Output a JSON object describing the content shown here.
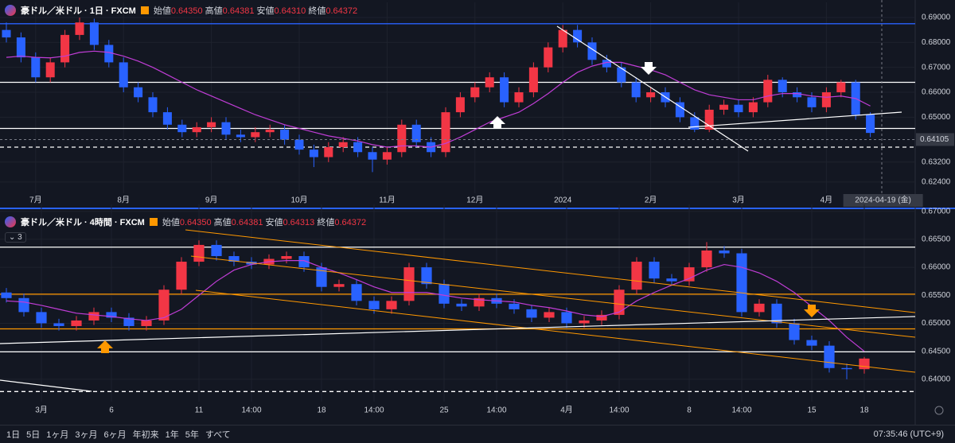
{
  "chart_data": [
    {
      "type": "candlestick",
      "title": "豪ドル／米ドル · 1日 · FXCM",
      "ohlc_legend": [
        {
          "name": "始値",
          "value": "0.64350"
        },
        {
          "name": "高値",
          "value": "0.64381"
        },
        {
          "name": "安値",
          "value": "0.64310"
        },
        {
          "name": "終値",
          "value": "0.64372"
        }
      ],
      "up_color": "#f23645",
      "down_color": "#2962ff",
      "ma_color": "#c03dd6",
      "grid": true,
      "ylim": [
        0.6195,
        0.6935
      ],
      "yticks": [
        {
          "value": 0.69,
          "label": "0.69000"
        },
        {
          "value": 0.68,
          "label": "0.68000"
        },
        {
          "value": 0.67,
          "label": "0.67000"
        },
        {
          "value": 0.66,
          "label": "0.66000"
        },
        {
          "value": 0.65,
          "label": "0.65000"
        },
        {
          "value": 0.632,
          "label": "0.63200"
        },
        {
          "value": 0.624,
          "label": "0.62400"
        }
      ],
      "crosshair": {
        "date": "2024-04-19 (金)",
        "price": {
          "value": 0.64105,
          "label": "0.64105"
        }
      },
      "levels": [
        {
          "value": 0.6875,
          "color": "#2962ff",
          "style": "solid"
        },
        {
          "value": 0.664,
          "color": "#ffffff",
          "style": "solid"
        },
        {
          "value": 0.6455,
          "color": "#ffffff",
          "style": "solid"
        },
        {
          "value": 0.638,
          "color": "#ffffff",
          "style": "dashed"
        }
      ],
      "categories": [
        null,
        null,
        "7月",
        null,
        null,
        null,
        null,
        null,
        "8月",
        null,
        null,
        null,
        null,
        null,
        "9月",
        null,
        null,
        null,
        null,
        null,
        "10月",
        null,
        null,
        null,
        null,
        null,
        "11月",
        null,
        null,
        null,
        null,
        null,
        "12月",
        null,
        null,
        null,
        null,
        null,
        "2024",
        null,
        null,
        null,
        null,
        null,
        "2月",
        null,
        null,
        null,
        null,
        null,
        "3月",
        null,
        null,
        null,
        null,
        null,
        "4月",
        null,
        null,
        null
      ],
      "ohlc": [
        [
          0.685,
          0.688,
          0.68,
          0.682
        ],
        [
          0.682,
          0.684,
          0.672,
          0.674
        ],
        [
          0.674,
          0.676,
          0.664,
          0.666
        ],
        [
          0.666,
          0.674,
          0.664,
          0.672
        ],
        [
          0.672,
          0.685,
          0.67,
          0.683
        ],
        [
          0.683,
          0.69,
          0.681,
          0.688
        ],
        [
          0.688,
          0.6895,
          0.677,
          0.679
        ],
        [
          0.679,
          0.681,
          0.67,
          0.672
        ],
        [
          0.672,
          0.674,
          0.66,
          0.662
        ],
        [
          0.662,
          0.664,
          0.656,
          0.658
        ],
        [
          0.658,
          0.66,
          0.65,
          0.652
        ],
        [
          0.652,
          0.654,
          0.645,
          0.647
        ],
        [
          0.647,
          0.649,
          0.642,
          0.644
        ],
        [
          0.644,
          0.648,
          0.642,
          0.646
        ],
        [
          0.646,
          0.65,
          0.644,
          0.648
        ],
        [
          0.648,
          0.65,
          0.641,
          0.643
        ],
        [
          0.643,
          0.645,
          0.64,
          0.642
        ],
        [
          0.642,
          0.646,
          0.64,
          0.644
        ],
        [
          0.644,
          0.647,
          0.642,
          0.645
        ],
        [
          0.645,
          0.647,
          0.639,
          0.641
        ],
        [
          0.641,
          0.643,
          0.635,
          0.637
        ],
        [
          0.637,
          0.639,
          0.63,
          0.634
        ],
        [
          0.634,
          0.64,
          0.632,
          0.638
        ],
        [
          0.638,
          0.642,
          0.636,
          0.64
        ],
        [
          0.64,
          0.642,
          0.634,
          0.636
        ],
        [
          0.636,
          0.638,
          0.628,
          0.633
        ],
        [
          0.633,
          0.638,
          0.631,
          0.636
        ],
        [
          0.636,
          0.649,
          0.634,
          0.647
        ],
        [
          0.647,
          0.649,
          0.638,
          0.64
        ],
        [
          0.64,
          0.642,
          0.634,
          0.636
        ],
        [
          0.636,
          0.654,
          0.634,
          0.652
        ],
        [
          0.652,
          0.66,
          0.65,
          0.658
        ],
        [
          0.658,
          0.664,
          0.656,
          0.662
        ],
        [
          0.662,
          0.668,
          0.66,
          0.666
        ],
        [
          0.666,
          0.668,
          0.654,
          0.656
        ],
        [
          0.656,
          0.662,
          0.654,
          0.66
        ],
        [
          0.66,
          0.672,
          0.658,
          0.67
        ],
        [
          0.67,
          0.68,
          0.668,
          0.678
        ],
        [
          0.678,
          0.687,
          0.676,
          0.685
        ],
        [
          0.685,
          0.687,
          0.678,
          0.68
        ],
        [
          0.68,
          0.682,
          0.671,
          0.673
        ],
        [
          0.673,
          0.675,
          0.668,
          0.67
        ],
        [
          0.67,
          0.672,
          0.662,
          0.664
        ],
        [
          0.664,
          0.666,
          0.656,
          0.658
        ],
        [
          0.658,
          0.662,
          0.656,
          0.66
        ],
        [
          0.66,
          0.662,
          0.654,
          0.656
        ],
        [
          0.656,
          0.658,
          0.648,
          0.65
        ],
        [
          0.65,
          0.652,
          0.644,
          0.645
        ],
        [
          0.645,
          0.655,
          0.644,
          0.653
        ],
        [
          0.653,
          0.657,
          0.651,
          0.655
        ],
        [
          0.655,
          0.657,
          0.65,
          0.652
        ],
        [
          0.652,
          0.658,
          0.65,
          0.656
        ],
        [
          0.656,
          0.667,
          0.654,
          0.665
        ],
        [
          0.665,
          0.666,
          0.658,
          0.66
        ],
        [
          0.66,
          0.662,
          0.656,
          0.658
        ],
        [
          0.658,
          0.66,
          0.652,
          0.654
        ],
        [
          0.654,
          0.662,
          0.652,
          0.66
        ],
        [
          0.66,
          0.665,
          0.658,
          0.664
        ],
        [
          0.664,
          0.665,
          0.649,
          0.651
        ],
        [
          0.651,
          0.652,
          0.642,
          0.6437
        ]
      ],
      "ma": [
        0.674,
        0.6745,
        0.674,
        0.6738,
        0.6745,
        0.676,
        0.6765,
        0.676,
        0.6745,
        0.6725,
        0.67,
        0.667,
        0.664,
        0.661,
        0.6585,
        0.656,
        0.6535,
        0.651,
        0.649,
        0.647,
        0.6455,
        0.644,
        0.6425,
        0.6415,
        0.6405,
        0.639,
        0.638,
        0.6385,
        0.6385,
        0.638,
        0.6395,
        0.642,
        0.645,
        0.648,
        0.65,
        0.652,
        0.6555,
        0.6595,
        0.664,
        0.668,
        0.6705,
        0.672,
        0.672,
        0.6705,
        0.669,
        0.667,
        0.664,
        0.661,
        0.659,
        0.658,
        0.657,
        0.657,
        0.6585,
        0.6595,
        0.6595,
        0.6585,
        0.658,
        0.6585,
        0.6575,
        0.6545
      ]
    },
    {
      "type": "candlestick",
      "title": "豪ドル／米ドル · 4時間 · FXCM",
      "indicator_toggle": "3",
      "ohlc_legend": [
        {
          "name": "始値",
          "value": "0.64350"
        },
        {
          "name": "高値",
          "value": "0.64381"
        },
        {
          "name": "安値",
          "value": "0.64313"
        },
        {
          "name": "終値",
          "value": "0.64372"
        }
      ],
      "up_color": "#f23645",
      "down_color": "#2962ff",
      "ma_color": "#c03dd6",
      "grid": true,
      "ylim": [
        0.636,
        0.6701
      ],
      "yticks": [
        {
          "value": 0.67,
          "label": "0.67000"
        },
        {
          "value": 0.665,
          "label": "0.66500"
        },
        {
          "value": 0.66,
          "label": "0.66000"
        },
        {
          "value": 0.655,
          "label": "0.65500"
        },
        {
          "value": 0.65,
          "label": "0.65000"
        },
        {
          "value": 0.645,
          "label": "0.64500"
        },
        {
          "value": 0.64,
          "label": "0.64000"
        }
      ],
      "levels": [
        {
          "value": 0.6636,
          "color": "#ffffff",
          "style": "solid"
        },
        {
          "value": 0.6552,
          "color": "#ff9800",
          "style": "solid"
        },
        {
          "value": 0.649,
          "color": "#ff9800",
          "style": "solid"
        },
        {
          "value": 0.6449,
          "color": "#ffffff",
          "style": "solid"
        },
        {
          "value": 0.6378,
          "color": "#ffffff",
          "style": "dashed"
        }
      ],
      "categories": [
        null,
        null,
        "3月",
        null,
        null,
        null,
        "6",
        null,
        null,
        null,
        null,
        "11",
        null,
        null,
        "14:00",
        null,
        null,
        null,
        "18",
        null,
        null,
        "14:00",
        null,
        null,
        null,
        "25",
        null,
        null,
        "14:00",
        null,
        null,
        null,
        "4月",
        null,
        null,
        "14:00",
        null,
        null,
        null,
        "8",
        null,
        null,
        "14:00",
        null,
        null,
        null,
        "15",
        null,
        null,
        "18"
      ],
      "ohlc": [
        [
          0.6555,
          0.6563,
          0.6537,
          0.6545
        ],
        [
          0.6545,
          0.6553,
          0.6512,
          0.652
        ],
        [
          0.652,
          0.6528,
          0.6492,
          0.65
        ],
        [
          0.65,
          0.6508,
          0.6487,
          0.6495
        ],
        [
          0.6495,
          0.6513,
          0.6487,
          0.6505
        ],
        [
          0.6505,
          0.6528,
          0.6497,
          0.652
        ],
        [
          0.652,
          0.6528,
          0.6502,
          0.651
        ],
        [
          0.651,
          0.6518,
          0.6487,
          0.6495
        ],
        [
          0.6495,
          0.6513,
          0.6487,
          0.6505
        ],
        [
          0.6505,
          0.6568,
          0.6497,
          0.656
        ],
        [
          0.656,
          0.6618,
          0.6552,
          0.661
        ],
        [
          0.661,
          0.6648,
          0.6602,
          0.664
        ],
        [
          0.664,
          0.6648,
          0.6612,
          0.662
        ],
        [
          0.662,
          0.6628,
          0.6602,
          0.661
        ],
        [
          0.661,
          0.6618,
          0.6597,
          0.6605
        ],
        [
          0.6605,
          0.6623,
          0.6597,
          0.6615
        ],
        [
          0.6615,
          0.6628,
          0.6607,
          0.662
        ],
        [
          0.662,
          0.6628,
          0.6592,
          0.66
        ],
        [
          0.66,
          0.6608,
          0.6557,
          0.6565
        ],
        [
          0.6565,
          0.6578,
          0.6557,
          0.657
        ],
        [
          0.657,
          0.6578,
          0.6532,
          0.654
        ],
        [
          0.654,
          0.6548,
          0.6517,
          0.6525
        ],
        [
          0.6525,
          0.6548,
          0.6517,
          0.654
        ],
        [
          0.654,
          0.6608,
          0.6532,
          0.66
        ],
        [
          0.66,
          0.6608,
          0.6562,
          0.657
        ],
        [
          0.657,
          0.6578,
          0.6527,
          0.6535
        ],
        [
          0.6535,
          0.6543,
          0.6522,
          0.653
        ],
        [
          0.653,
          0.6553,
          0.6522,
          0.6545
        ],
        [
          0.6545,
          0.6553,
          0.6527,
          0.6535
        ],
        [
          0.6535,
          0.6543,
          0.6517,
          0.6525
        ],
        [
          0.6525,
          0.6533,
          0.6502,
          0.651
        ],
        [
          0.651,
          0.6528,
          0.6502,
          0.652
        ],
        [
          0.652,
          0.6528,
          0.6492,
          0.65
        ],
        [
          0.65,
          0.6513,
          0.6492,
          0.6505
        ],
        [
          0.6505,
          0.6523,
          0.6497,
          0.6515
        ],
        [
          0.6515,
          0.6568,
          0.6507,
          0.656
        ],
        [
          0.656,
          0.6618,
          0.6552,
          0.661
        ],
        [
          0.661,
          0.6618,
          0.6572,
          0.658
        ],
        [
          0.658,
          0.6588,
          0.6567,
          0.6575
        ],
        [
          0.6575,
          0.6608,
          0.6567,
          0.66
        ],
        [
          0.66,
          0.6645,
          0.6592,
          0.663
        ],
        [
          0.663,
          0.6638,
          0.6617,
          0.6625
        ],
        [
          0.6625,
          0.6633,
          0.6512,
          0.652
        ],
        [
          0.652,
          0.6543,
          0.6512,
          0.6535
        ],
        [
          0.6535,
          0.6543,
          0.6492,
          0.65
        ],
        [
          0.65,
          0.6508,
          0.6462,
          0.647
        ],
        [
          0.647,
          0.6478,
          0.6452,
          0.646
        ],
        [
          0.646,
          0.6468,
          0.6412,
          0.642
        ],
        [
          0.642,
          0.6428,
          0.64,
          0.6418
        ],
        [
          0.6418,
          0.644,
          0.641,
          0.6437
        ]
      ],
      "ma": [
        0.654,
        0.6538,
        0.6532,
        0.6525,
        0.6518,
        0.6515,
        0.6512,
        0.6508,
        0.6505,
        0.651,
        0.6525,
        0.655,
        0.6575,
        0.6595,
        0.6605,
        0.661,
        0.6612,
        0.6612,
        0.66,
        0.659,
        0.6578,
        0.6565,
        0.6555,
        0.6555,
        0.6555,
        0.655,
        0.6545,
        0.6542,
        0.654,
        0.6538,
        0.6532,
        0.6528,
        0.6522,
        0.6515,
        0.6512,
        0.652,
        0.654,
        0.6555,
        0.6568,
        0.658,
        0.6595,
        0.6605,
        0.66,
        0.659,
        0.6575,
        0.6555,
        0.653,
        0.6505,
        0.6475,
        0.645
      ]
    }
  ],
  "toolbar": {
    "ranges": [
      "1日",
      "5日",
      "1ヶ月",
      "3ヶ月",
      "6ヶ月",
      "年初来",
      "1年",
      "5年",
      "すべて"
    ],
    "time": "07:35:46 (UTC+9)"
  }
}
